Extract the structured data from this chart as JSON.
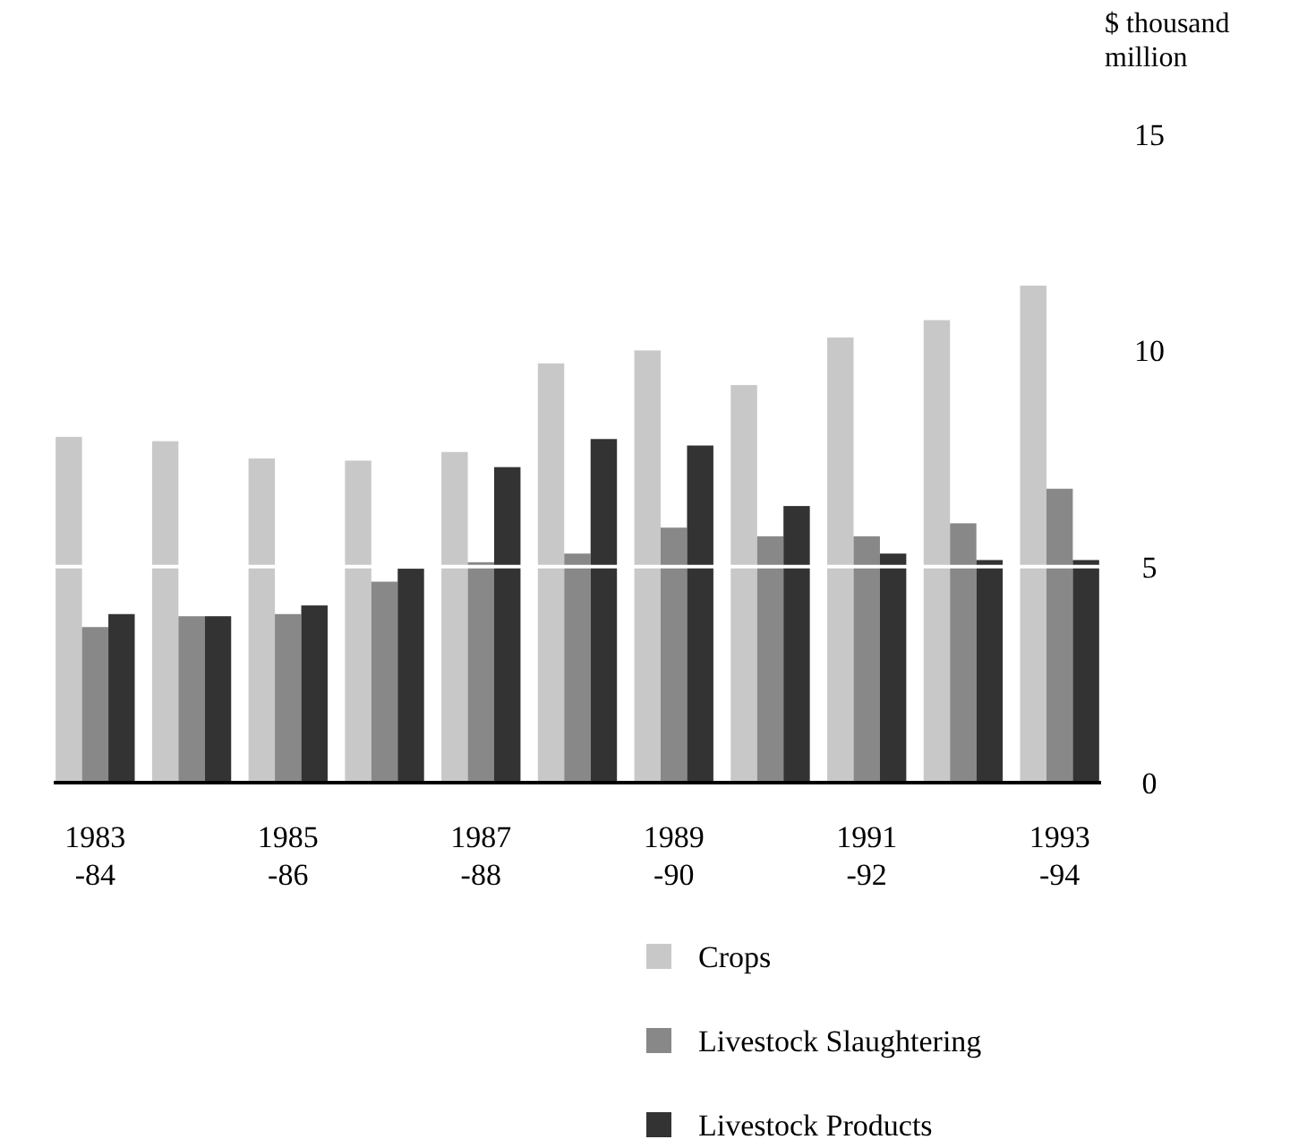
{
  "chart_data": {
    "type": "bar",
    "ylabel": "$ thousand million",
    "categories": [
      "1983\n-84",
      null,
      "1985\n-86",
      null,
      "1987\n-88",
      null,
      "1989\n-90",
      null,
      "1991\n-92",
      null,
      "1993\n-94"
    ],
    "series": [
      {
        "name": "Crops",
        "color": "#c8c8c8",
        "values": [
          8.0,
          7.9,
          7.5,
          7.45,
          7.65,
          9.7,
          10.0,
          9.2,
          10.3,
          10.7,
          11.5
        ]
      },
      {
        "name": "Livestock Slaughtering",
        "color": "#888888",
        "values": [
          3.6,
          3.85,
          3.9,
          4.65,
          5.1,
          5.3,
          5.9,
          5.7,
          5.7,
          6.0,
          6.8
        ]
      },
      {
        "name": "Livestock Products",
        "color": "#333333",
        "values": [
          3.9,
          3.85,
          4.1,
          4.95,
          7.3,
          7.95,
          7.8,
          6.4,
          5.3,
          5.15,
          5.15
        ]
      }
    ],
    "ylim": [
      0,
      15
    ],
    "yticks": [
      0,
      5,
      10,
      15
    ],
    "ref_lines": [
      {
        "axis": "y",
        "value": 5,
        "color": "#ffffff"
      }
    ],
    "legend": "bottom"
  }
}
